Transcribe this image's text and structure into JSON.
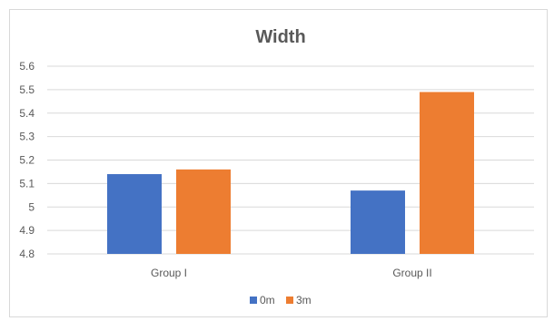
{
  "chart_data": {
    "type": "bar",
    "title": "Width",
    "categories": [
      "Group I",
      "Group II"
    ],
    "series": [
      {
        "name": "0m",
        "values": [
          5.14,
          5.07
        ],
        "color": "#4472C4"
      },
      {
        "name": "3m",
        "values": [
          5.16,
          5.49
        ],
        "color": "#ED7D31"
      }
    ],
    "ylim": [
      4.8,
      5.6
    ],
    "yticks": [
      "4.8",
      "4.9",
      "5",
      "5.1",
      "5.2",
      "5.3",
      "5.4",
      "5.5",
      "5.6"
    ],
    "grid": true,
    "legend": "bottom"
  }
}
